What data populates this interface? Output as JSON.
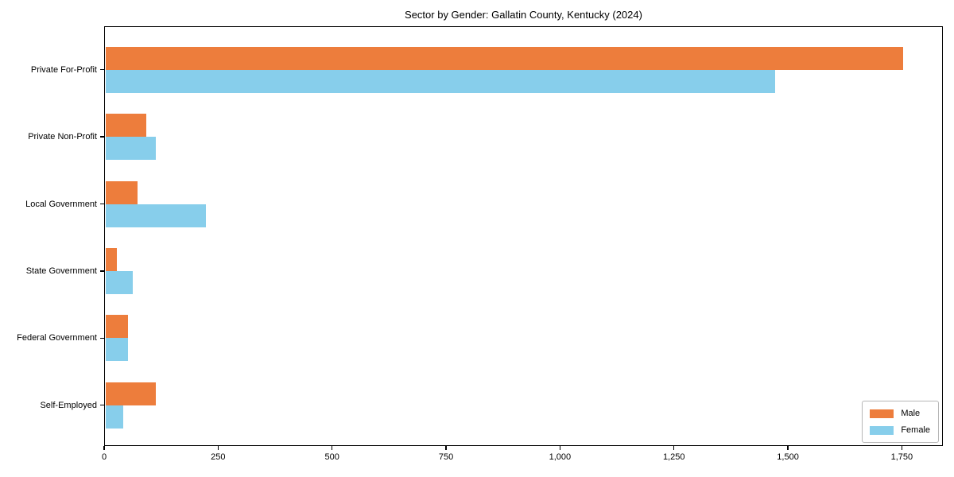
{
  "page": {
    "background": "#ffffff"
  },
  "chart_data": {
    "type": "bar",
    "orientation": "horizontal",
    "title": "Sector by Gender: Gallatin County, Kentucky (2024)",
    "categories": [
      "Private For-Profit",
      "Private Non-Profit",
      "Local Government",
      "State Government",
      "Federal Government",
      "Self-Employed"
    ],
    "series": [
      {
        "name": "Male",
        "color": "#ED7D3C",
        "values": [
          1750,
          90,
          70,
          25,
          50,
          110
        ]
      },
      {
        "name": "Female",
        "color": "#87CEEB",
        "values": [
          1470,
          110,
          220,
          60,
          50,
          40
        ]
      }
    ],
    "xlabel": "",
    "ylabel": "",
    "xlim": [
      0,
      1840
    ],
    "xticks": {
      "values": [
        0,
        250,
        500,
        750,
        1000,
        1250,
        1500,
        1750
      ],
      "labels": [
        "0",
        "250",
        "500",
        "750",
        "1,000",
        "1,250",
        "1,500",
        "1,750"
      ]
    },
    "grid": false,
    "legend": {
      "position": "lower right",
      "entries": [
        "Male",
        "Female"
      ]
    },
    "frame_color": "#000000",
    "text_color": "#000000"
  }
}
